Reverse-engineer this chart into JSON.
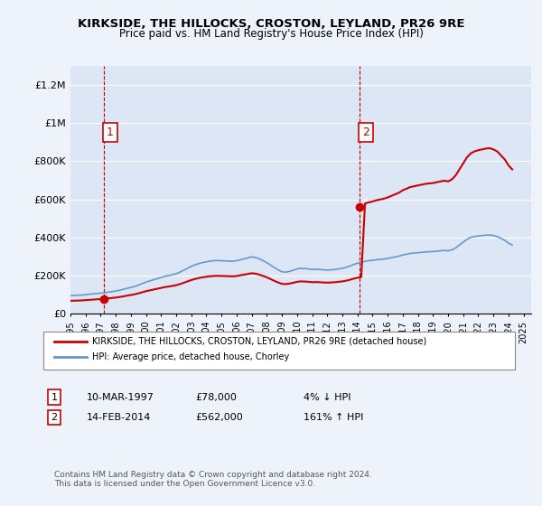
{
  "title_line1": "KIRKSIDE, THE HILLOCKS, CROSTON, LEYLAND, PR26 9RE",
  "title_line2": "Price paid vs. HM Land Registry's House Price Index (HPI)",
  "ylabel_ticks": [
    "£0",
    "£200K",
    "£400K",
    "£600K",
    "£800K",
    "£1M",
    "£1.2M"
  ],
  "ytick_vals": [
    0,
    200000,
    400000,
    600000,
    800000,
    1000000,
    1200000
  ],
  "ylim": [
    0,
    1300000
  ],
  "xlim_start": 1995.0,
  "xlim_end": 2025.5,
  "xticks": [
    1995,
    1996,
    1997,
    1998,
    1999,
    2000,
    2001,
    2002,
    2003,
    2004,
    2005,
    2006,
    2007,
    2008,
    2009,
    2010,
    2011,
    2012,
    2013,
    2014,
    2015,
    2016,
    2017,
    2018,
    2019,
    2020,
    2021,
    2022,
    2023,
    2024,
    2025
  ],
  "hpi_x": [
    1995.0,
    1995.25,
    1995.5,
    1995.75,
    1996.0,
    1996.25,
    1996.5,
    1996.75,
    1997.0,
    1997.25,
    1997.5,
    1997.75,
    1998.0,
    1998.25,
    1998.5,
    1998.75,
    1999.0,
    1999.25,
    1999.5,
    1999.75,
    2000.0,
    2000.25,
    2000.5,
    2000.75,
    2001.0,
    2001.25,
    2001.5,
    2001.75,
    2002.0,
    2002.25,
    2002.5,
    2002.75,
    2003.0,
    2003.25,
    2003.5,
    2003.75,
    2004.0,
    2004.25,
    2004.5,
    2004.75,
    2005.0,
    2005.25,
    2005.5,
    2005.75,
    2006.0,
    2006.25,
    2006.5,
    2006.75,
    2007.0,
    2007.25,
    2007.5,
    2007.75,
    2008.0,
    2008.25,
    2008.5,
    2008.75,
    2009.0,
    2009.25,
    2009.5,
    2009.75,
    2010.0,
    2010.25,
    2010.5,
    2010.75,
    2011.0,
    2011.25,
    2011.5,
    2011.75,
    2012.0,
    2012.25,
    2012.5,
    2012.75,
    2013.0,
    2013.25,
    2013.5,
    2013.75,
    2014.0,
    2014.25,
    2014.5,
    2014.75,
    2015.0,
    2015.25,
    2015.5,
    2015.75,
    2016.0,
    2016.25,
    2016.5,
    2016.75,
    2017.0,
    2017.25,
    2017.5,
    2017.75,
    2018.0,
    2018.25,
    2018.5,
    2018.75,
    2019.0,
    2019.25,
    2019.5,
    2019.75,
    2020.0,
    2020.25,
    2020.5,
    2020.75,
    2021.0,
    2021.25,
    2021.5,
    2021.75,
    2022.0,
    2022.25,
    2022.5,
    2022.75,
    2023.0,
    2023.25,
    2023.5,
    2023.75,
    2024.0,
    2024.25
  ],
  "hpi_y": [
    95000,
    96000,
    97000,
    98000,
    100000,
    102000,
    104000,
    106000,
    108000,
    110000,
    113000,
    116000,
    119000,
    123000,
    128000,
    133000,
    138000,
    143000,
    150000,
    158000,
    166000,
    172000,
    178000,
    184000,
    190000,
    196000,
    200000,
    205000,
    210000,
    218000,
    228000,
    238000,
    248000,
    256000,
    263000,
    268000,
    272000,
    276000,
    278000,
    279000,
    278000,
    277000,
    276000,
    275000,
    278000,
    283000,
    288000,
    293000,
    298000,
    295000,
    288000,
    278000,
    268000,
    255000,
    242000,
    230000,
    220000,
    218000,
    222000,
    228000,
    235000,
    238000,
    237000,
    235000,
    232000,
    233000,
    232000,
    230000,
    229000,
    230000,
    232000,
    235000,
    238000,
    243000,
    250000,
    258000,
    265000,
    270000,
    275000,
    278000,
    280000,
    283000,
    285000,
    287000,
    290000,
    294000,
    298000,
    302000,
    308000,
    312000,
    316000,
    318000,
    320000,
    322000,
    324000,
    325000,
    326000,
    328000,
    330000,
    332000,
    330000,
    335000,
    345000,
    360000,
    375000,
    390000,
    400000,
    405000,
    408000,
    410000,
    412000,
    413000,
    410000,
    405000,
    395000,
    385000,
    370000,
    360000
  ],
  "sale1_x": 1997.19,
  "sale1_y": 78000,
  "sale2_x": 2014.12,
  "sale2_y": 562000,
  "sale_color": "#cc0000",
  "hpi_color": "#6699cc",
  "bg_color": "#eef3fb",
  "plot_bg": "#dce6f5",
  "grid_color": "#ffffff",
  "legend_label1": "KIRKSIDE, THE HILLOCKS, CROSTON, LEYLAND, PR26 9RE (detached house)",
  "legend_label2": "HPI: Average price, detached house, Chorley",
  "table_row1": [
    "1",
    "10-MAR-1997",
    "£78,000",
    "4% ↓ HPI"
  ],
  "table_row2": [
    "2",
    "14-FEB-2014",
    "£562,000",
    "161% ↑ HPI"
  ],
  "footer": "Contains HM Land Registry data © Crown copyright and database right 2024.\nThis data is licensed under the Open Government Licence v3.0."
}
